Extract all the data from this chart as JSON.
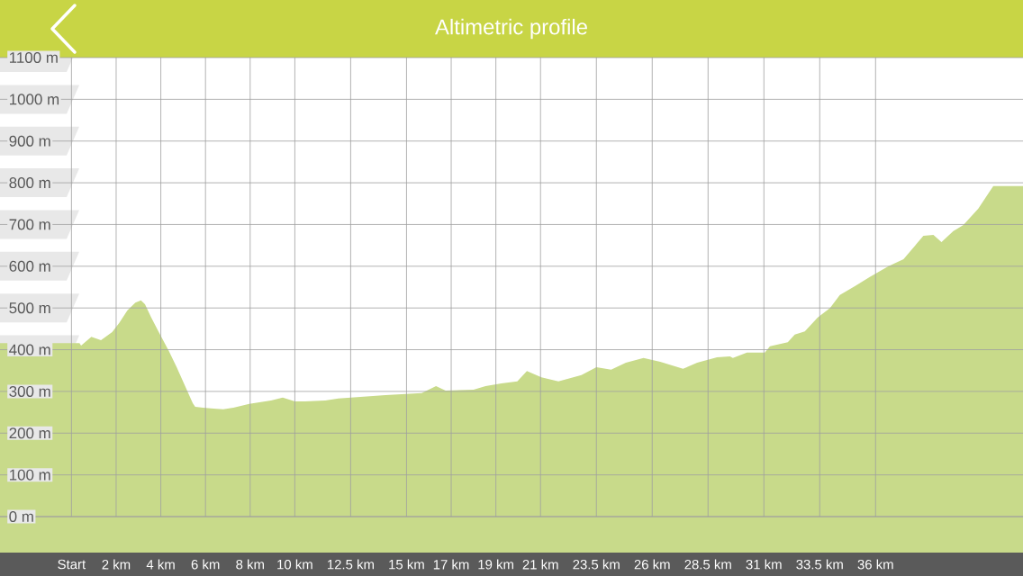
{
  "chart_data": {
    "type": "area",
    "title": "Altimetric profile",
    "color": "#c8da8a",
    "grid": true,
    "x": [
      -3.2,
      0.36,
      0.43,
      0.89,
      1.32,
      1.82,
      2.14,
      2.5,
      2.86,
      3.11,
      3.29,
      3.57,
      3.93,
      4.36,
      4.71,
      5.07,
      5.43,
      5.54,
      5.89,
      6.36,
      6.79,
      7.25,
      7.96,
      8.93,
      9.46,
      10,
      10.45,
      11.36,
      11.95,
      14.06,
      15.68,
      16.32,
      16.75,
      18.0,
      18.54,
      19.25,
      19.96,
      20.39,
      21.04,
      21.8,
      22.83,
      23.5,
      24.16,
      24.82,
      25.61,
      26.36,
      27.38,
      28.01,
      28.9,
      29.48,
      29.61,
      30.24,
      30.38,
      31.04,
      31.27,
      32.07,
      32.38,
      32.83,
      33.41,
      33.96,
      34.4,
      35.07,
      35.74,
      36.58,
      37.25,
      38.14,
      38.59,
      38.95,
      39.48,
      39.93,
      40.6,
      41.04,
      41.27,
      42.6
    ],
    "values": [
      416,
      416,
      410,
      431,
      423,
      442,
      464,
      494,
      513,
      518,
      509,
      477,
      440,
      397,
      358,
      315,
      272,
      263,
      261,
      259,
      257,
      261,
      270,
      278,
      285,
      276,
      276,
      278,
      283,
      291,
      296,
      313,
      302,
      304,
      313,
      319,
      324,
      349,
      334,
      324,
      339,
      358,
      352,
      369,
      380,
      371,
      354,
      369,
      382,
      384,
      380,
      393,
      393,
      393,
      408,
      418,
      436,
      444,
      477,
      500,
      531,
      552,
      574,
      600,
      617,
      673,
      675,
      658,
      684,
      699,
      738,
      774,
      792,
      792
    ],
    "xlim": [
      -3.2,
      42.6
    ],
    "ylim": [
      0,
      1100
    ],
    "xticks": [
      {
        "value": 0,
        "label": "Start"
      },
      {
        "value": 2,
        "label": "2 km"
      },
      {
        "value": 4,
        "label": "4 km"
      },
      {
        "value": 6,
        "label": "6 km"
      },
      {
        "value": 8,
        "label": "8 km"
      },
      {
        "value": 10,
        "label": "10 km"
      },
      {
        "value": 12.5,
        "label": "12.5 km"
      },
      {
        "value": 15,
        "label": "15 km"
      },
      {
        "value": 17,
        "label": "17 km"
      },
      {
        "value": 19,
        "label": "19 km"
      },
      {
        "value": 21,
        "label": "21 km"
      },
      {
        "value": 23.5,
        "label": "23.5 km"
      },
      {
        "value": 26,
        "label": "26 km"
      },
      {
        "value": 28.5,
        "label": "28.5 km"
      },
      {
        "value": 31,
        "label": "31 km"
      },
      {
        "value": 33.5,
        "label": "33.5 km"
      },
      {
        "value": 36,
        "label": "36 km"
      }
    ],
    "yticks": [
      {
        "value": 0,
        "label": "0 m"
      },
      {
        "value": 100,
        "label": "100 m"
      },
      {
        "value": 200,
        "label": "200 m"
      },
      {
        "value": 300,
        "label": "300 m"
      },
      {
        "value": 400,
        "label": "400 m"
      },
      {
        "value": 500,
        "label": "500 m"
      },
      {
        "value": 600,
        "label": "600 m"
      },
      {
        "value": 700,
        "label": "700 m"
      },
      {
        "value": 800,
        "label": "800 m"
      },
      {
        "value": 900,
        "label": "900 m"
      },
      {
        "value": 1000,
        "label": "1000 m"
      },
      {
        "value": 1100,
        "label": "1100 m"
      }
    ]
  }
}
